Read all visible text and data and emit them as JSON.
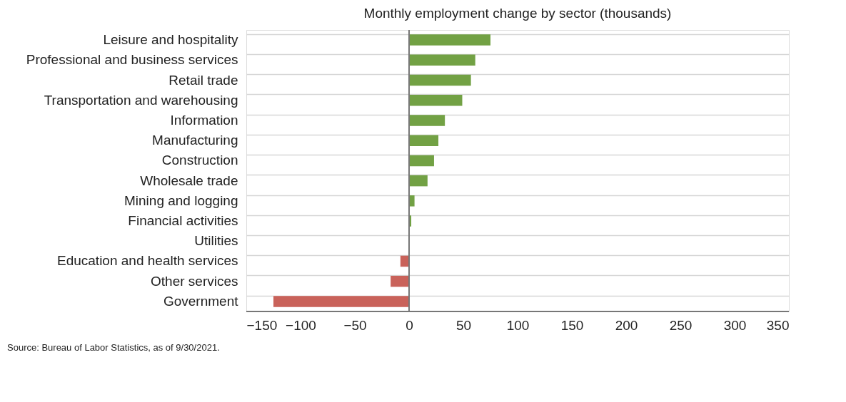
{
  "chart_data": {
    "type": "bar",
    "orientation": "horizontal",
    "title": "Monthly employment change by sector (thousands)",
    "categories": [
      "Leisure and hospitality",
      "Professional and business services",
      "Retail trade",
      "Transportation and warehousing",
      "Information",
      "Manufacturing",
      "Construction",
      "Wholesale trade",
      "Mining and logging",
      "Financial activities",
      "Utilities",
      "Education and health services",
      "Other services",
      "Government"
    ],
    "values": [
      75,
      61,
      57,
      49,
      33,
      27,
      23,
      17,
      5,
      2,
      0,
      -8,
      -17,
      -125
    ],
    "colors": [
      "#72a144",
      "#72a144",
      "#72a144",
      "#72a144",
      "#72a144",
      "#72a144",
      "#72a144",
      "#72a144",
      "#72a144",
      "#72a144",
      "#72a144",
      "#c9625a",
      "#c9625a",
      "#c9625a"
    ],
    "xlim": [
      -150,
      350
    ],
    "xticks": [
      -150,
      -100,
      -50,
      0,
      50,
      100,
      150,
      200,
      250,
      300,
      350
    ],
    "grid": "y",
    "annotations": [
      "Source: Bureau of Labor Statistics, as of 9/30/2021."
    ]
  }
}
